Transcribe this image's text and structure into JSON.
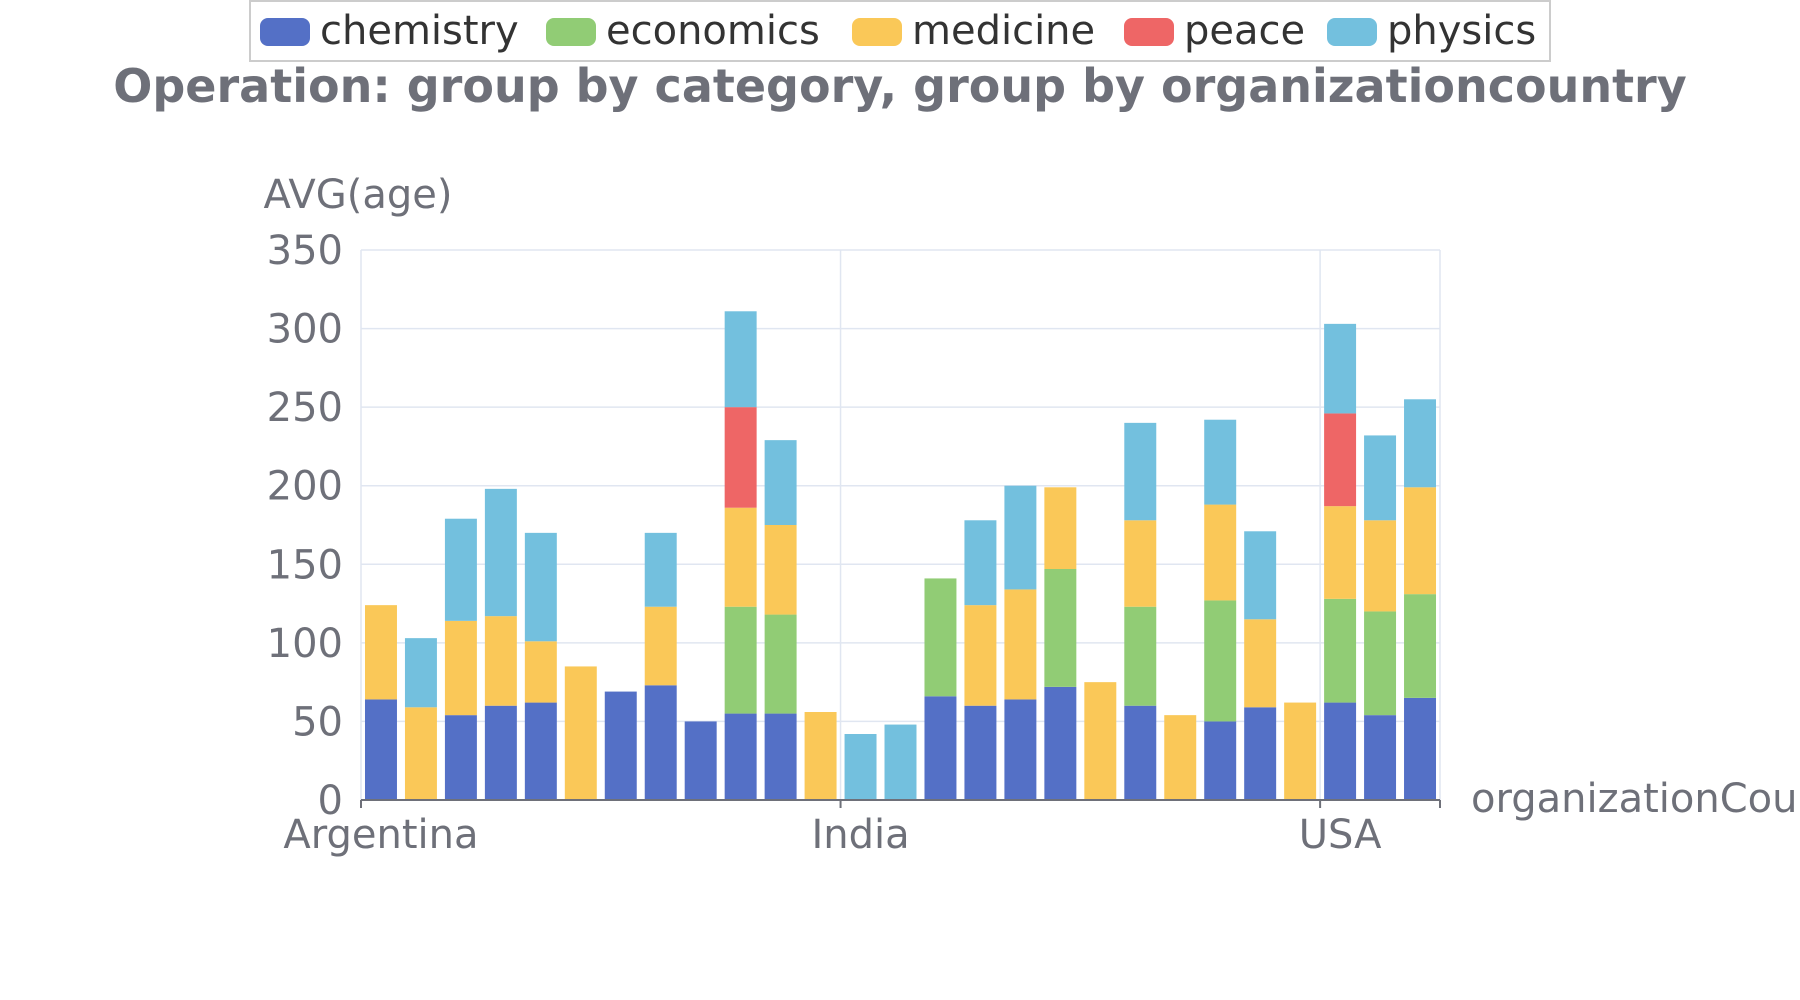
{
  "chart_data": {
    "type": "bar",
    "stacked": true,
    "title": "Operation: group by category, group by organizationcountry",
    "ylabel": "AVG(age)",
    "xlabel": "organizationCountry",
    "ylim": [
      0,
      350
    ],
    "y_ticks": [
      0,
      50,
      100,
      150,
      200,
      250,
      300,
      350
    ],
    "x_tick_labels": [
      "Argentina",
      "India",
      "USA"
    ],
    "legend_position": "top",
    "grid": true,
    "categories": [
      "1",
      "2",
      "3",
      "4",
      "5",
      "6",
      "7",
      "8",
      "9",
      "10",
      "11",
      "12",
      "13",
      "14",
      "15",
      "16",
      "17",
      "18",
      "19",
      "20",
      "21",
      "22",
      "23",
      "24",
      "25",
      "26",
      "27"
    ],
    "series": [
      {
        "name": "chemistry",
        "color": "#5470c6",
        "values": [
          64,
          0,
          54,
          60,
          62,
          0,
          69,
          73,
          50,
          55,
          55,
          0,
          0,
          0,
          66,
          60,
          64,
          72,
          0,
          60,
          0,
          50,
          59,
          0,
          62,
          54,
          65
        ]
      },
      {
        "name": "economics",
        "color": "#91cc75",
        "values": [
          0,
          0,
          0,
          0,
          0,
          0,
          0,
          0,
          0,
          68,
          63,
          0,
          0,
          0,
          75,
          0,
          0,
          75,
          0,
          63,
          0,
          77,
          0,
          0,
          66,
          66,
          66
        ]
      },
      {
        "name": "medicine",
        "color": "#fac858",
        "values": [
          60,
          59,
          60,
          57,
          39,
          85,
          0,
          50,
          0,
          63,
          57,
          56,
          0,
          0,
          0,
          64,
          70,
          52,
          75,
          55,
          54,
          61,
          56,
          62,
          59,
          58,
          68
        ]
      },
      {
        "name": "peace",
        "color": "#ee6666",
        "values": [
          0,
          0,
          0,
          0,
          0,
          0,
          0,
          0,
          0,
          64,
          0,
          0,
          0,
          0,
          0,
          0,
          0,
          0,
          0,
          0,
          0,
          0,
          0,
          0,
          59,
          0,
          0
        ]
      },
      {
        "name": "physics",
        "color": "#73c0de",
        "values": [
          0,
          44,
          65,
          81,
          69,
          0,
          0,
          47,
          0,
          61,
          54,
          0,
          42,
          48,
          0,
          54,
          66,
          0,
          0,
          62,
          0,
          54,
          56,
          0,
          57,
          54,
          56
        ]
      }
    ]
  }
}
